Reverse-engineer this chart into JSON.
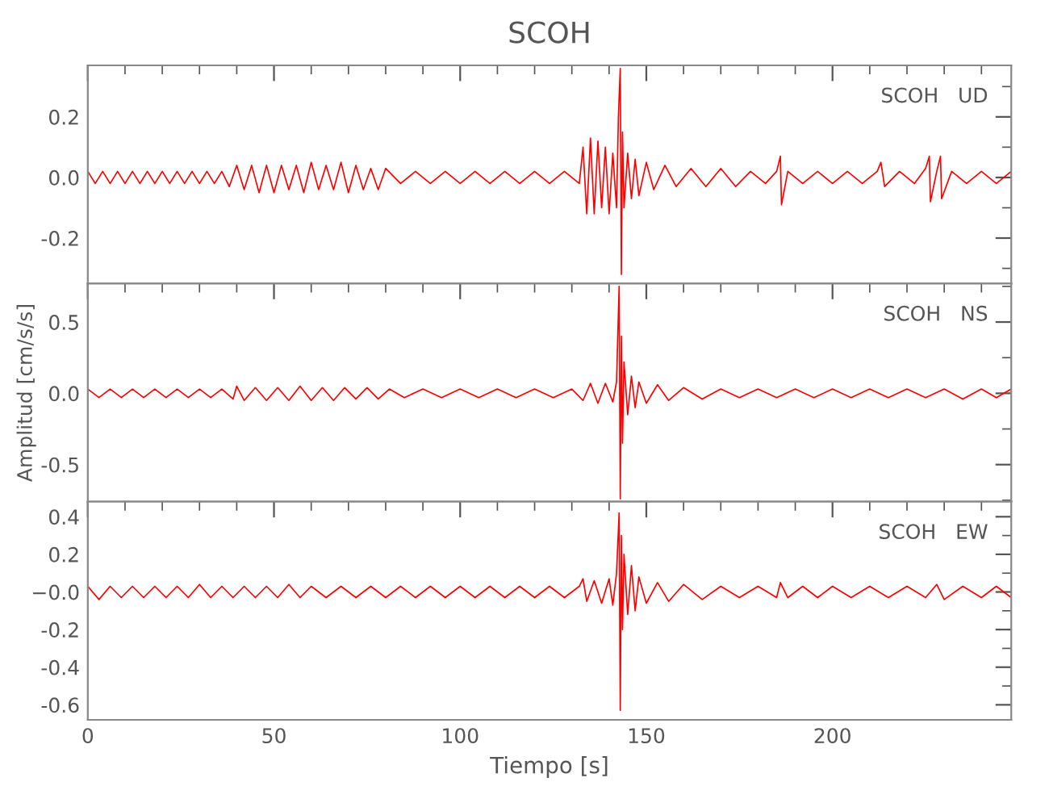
{
  "chart_data": [
    {
      "type": "line",
      "title": "SCOH",
      "annotations": [
        "SCOH   UD"
      ],
      "tick_labels": "y",
      "grid": false,
      "legend": false,
      "xlim": [
        0,
        248
      ],
      "xticks": [
        0,
        {
          "value": 10,
          "label": null
        },
        {
          "value": 20,
          "label": null
        },
        {
          "value": 30,
          "label": null
        },
        {
          "value": 40,
          "label": null
        },
        50,
        {
          "value": 60,
          "label": null
        },
        {
          "value": 70,
          "label": null
        },
        {
          "value": 80,
          "label": null
        },
        {
          "value": 90,
          "label": null
        },
        100,
        {
          "value": 110,
          "label": null
        },
        {
          "value": 120,
          "label": null
        },
        {
          "value": 130,
          "label": null
        },
        {
          "value": 140,
          "label": null
        },
        150,
        {
          "value": 160,
          "label": null
        },
        {
          "value": 170,
          "label": null
        },
        {
          "value": 180,
          "label": null
        },
        {
          "value": 190,
          "label": null
        },
        200,
        {
          "value": 210,
          "label": null
        },
        {
          "value": 220,
          "label": null
        },
        {
          "value": 230,
          "label": null
        },
        {
          "value": 240,
          "label": null
        }
      ],
      "ylim": [
        -0.35,
        0.37
      ],
      "yticks": [
        {
          "value": -0.3,
          "label": null
        },
        -0.2,
        {
          "value": -0.1,
          "label": null
        },
        {
          "value": 0,
          "label": "0.0"
        },
        {
          "value": 0.1,
          "label": null
        },
        0.2,
        {
          "value": 0.3,
          "label": null
        }
      ],
      "series": [
        {
          "color": "#ff0000",
          "x": [
            0,
            2,
            4,
            6,
            8,
            10,
            12,
            14,
            16,
            18,
            20,
            22,
            24,
            26,
            28,
            30,
            32,
            34,
            36,
            38,
            40,
            42,
            44,
            46,
            48,
            50,
            52,
            54,
            56,
            58,
            60,
            62,
            64,
            66,
            68,
            70,
            72,
            74,
            76,
            78,
            80,
            84,
            88,
            92,
            96,
            100,
            104,
            108,
            112,
            116,
            120,
            124,
            128,
            132,
            133,
            134,
            135,
            136,
            137,
            138,
            139,
            140,
            141,
            142,
            142.5,
            143,
            143.3,
            143.6,
            144,
            145,
            146,
            147,
            148,
            150,
            152,
            155,
            158,
            162,
            166,
            170,
            174,
            178,
            182,
            185,
            186,
            186.3,
            188,
            192,
            196,
            200,
            204,
            208,
            212,
            213,
            214,
            218,
            222,
            225,
            226,
            226.3,
            228,
            229,
            229.3,
            232,
            236,
            240,
            244,
            248
          ],
          "values": [
            0.02,
            -0.02,
            0.02,
            -0.02,
            0.02,
            -0.02,
            0.02,
            -0.02,
            0.02,
            -0.02,
            0.02,
            -0.02,
            0.02,
            -0.02,
            0.02,
            -0.02,
            0.02,
            -0.02,
            0.02,
            -0.03,
            0.04,
            -0.04,
            0.04,
            -0.05,
            0.04,
            -0.05,
            0.04,
            -0.04,
            0.04,
            -0.05,
            0.05,
            -0.04,
            0.04,
            -0.04,
            0.05,
            -0.05,
            0.04,
            -0.04,
            0.03,
            -0.04,
            0.03,
            -0.02,
            0.02,
            -0.02,
            0.02,
            -0.02,
            0.02,
            -0.02,
            0.02,
            -0.02,
            0.02,
            -0.02,
            0.02,
            -0.02,
            0.1,
            -0.12,
            0.13,
            -0.12,
            0.12,
            -0.1,
            0.1,
            -0.12,
            0.08,
            -0.1,
            0.2,
            0.36,
            -0.32,
            0.15,
            -0.1,
            0.08,
            -0.07,
            0.06,
            -0.06,
            0.05,
            -0.04,
            0.04,
            -0.03,
            0.03,
            -0.03,
            0.03,
            -0.03,
            0.02,
            -0.02,
            0.02,
            0.07,
            -0.09,
            0.02,
            -0.02,
            0.02,
            -0.02,
            0.02,
            -0.02,
            0.02,
            0.05,
            -0.03,
            0.02,
            -0.02,
            0.03,
            0.07,
            -0.08,
            0.02,
            0.07,
            -0.07,
            0.02,
            -0.02,
            0.02,
            -0.02,
            0.02
          ]
        }
      ]
    },
    {
      "type": "line",
      "ylabel": "Amplitud [cm/s/s]",
      "annotations": [
        "SCOH   NS"
      ],
      "tick_labels": "y",
      "grid": false,
      "legend": false,
      "xlim": [
        0,
        248
      ],
      "xticks": [
        0,
        {
          "value": 10,
          "label": null
        },
        {
          "value": 20,
          "label": null
        },
        {
          "value": 30,
          "label": null
        },
        {
          "value": 40,
          "label": null
        },
        50,
        {
          "value": 60,
          "label": null
        },
        {
          "value": 70,
          "label": null
        },
        {
          "value": 80,
          "label": null
        },
        {
          "value": 90,
          "label": null
        },
        100,
        {
          "value": 110,
          "label": null
        },
        {
          "value": 120,
          "label": null
        },
        {
          "value": 130,
          "label": null
        },
        {
          "value": 140,
          "label": null
        },
        150,
        {
          "value": 160,
          "label": null
        },
        {
          "value": 170,
          "label": null
        },
        {
          "value": 180,
          "label": null
        },
        {
          "value": 190,
          "label": null
        },
        200,
        {
          "value": 210,
          "label": null
        },
        {
          "value": 220,
          "label": null
        },
        {
          "value": 230,
          "label": null
        },
        {
          "value": 240,
          "label": null
        }
      ],
      "ylim": [
        -0.76,
        0.77
      ],
      "yticks": [
        {
          "value": -0.75,
          "label": null
        },
        -0.5,
        {
          "value": -0.25,
          "label": null
        },
        {
          "value": 0,
          "label": "0.0"
        },
        {
          "value": 0.25,
          "label": null
        },
        0.5,
        {
          "value": 0.75,
          "label": null
        }
      ],
      "series": [
        {
          "color": "#ff0000",
          "x": [
            0,
            3,
            6,
            9,
            12,
            15,
            18,
            21,
            24,
            27,
            30,
            33,
            36,
            39,
            40,
            42,
            45,
            48,
            51,
            54,
            57,
            60,
            63,
            66,
            69,
            72,
            75,
            78,
            81,
            85,
            90,
            95,
            100,
            105,
            110,
            115,
            120,
            125,
            130,
            133,
            135,
            137,
            139,
            141,
            142,
            142.7,
            143,
            143.3,
            143.6,
            144,
            145,
            146,
            147,
            148,
            150,
            153,
            156,
            160,
            165,
            170,
            175,
            180,
            185,
            190,
            195,
            200,
            205,
            210,
            215,
            220,
            225,
            230,
            235,
            240,
            244,
            248
          ],
          "values": [
            0.03,
            -0.03,
            0.03,
            -0.03,
            0.03,
            -0.03,
            0.03,
            -0.03,
            0.03,
            -0.03,
            0.03,
            -0.03,
            0.03,
            -0.04,
            0.05,
            -0.05,
            0.04,
            -0.05,
            0.04,
            -0.05,
            0.05,
            -0.05,
            0.04,
            -0.05,
            0.04,
            -0.04,
            0.04,
            -0.04,
            0.03,
            -0.03,
            0.03,
            -0.03,
            0.03,
            -0.03,
            0.03,
            -0.03,
            0.03,
            -0.03,
            0.03,
            -0.05,
            0.07,
            -0.07,
            0.07,
            -0.06,
            0.08,
            0.75,
            -0.74,
            0.4,
            -0.35,
            0.22,
            -0.15,
            0.12,
            -0.1,
            0.08,
            -0.07,
            0.06,
            -0.05,
            0.04,
            -0.04,
            0.03,
            -0.03,
            0.03,
            -0.03,
            0.03,
            -0.03,
            0.03,
            -0.03,
            0.03,
            -0.03,
            0.03,
            -0.03,
            0.03,
            -0.04,
            0.03,
            -0.03,
            0.03
          ]
        }
      ]
    },
    {
      "type": "line",
      "xlabel": "Tiempo [s]",
      "annotations": [
        "SCOH   EW"
      ],
      "grid": false,
      "legend": false,
      "xlim": [
        0,
        248
      ],
      "xticks": [
        0,
        {
          "value": 10,
          "label": null
        },
        {
          "value": 20,
          "label": null
        },
        {
          "value": 30,
          "label": null
        },
        {
          "value": 40,
          "label": null
        },
        50,
        {
          "value": 60,
          "label": null
        },
        {
          "value": 70,
          "label": null
        },
        {
          "value": 80,
          "label": null
        },
        {
          "value": 90,
          "label": null
        },
        100,
        {
          "value": 110,
          "label": null
        },
        {
          "value": 120,
          "label": null
        },
        {
          "value": 130,
          "label": null
        },
        {
          "value": 140,
          "label": null
        },
        150,
        {
          "value": 160,
          "label": null
        },
        {
          "value": 170,
          "label": null
        },
        {
          "value": 180,
          "label": null
        },
        {
          "value": 190,
          "label": null
        },
        200,
        {
          "value": 210,
          "label": null
        },
        {
          "value": 220,
          "label": null
        },
        {
          "value": 230,
          "label": null
        },
        {
          "value": 240,
          "label": null
        }
      ],
      "ylim": [
        -0.68,
        0.48
      ],
      "yticks": [
        -0.6,
        {
          "value": -0.5,
          "label": null
        },
        -0.4,
        {
          "value": -0.3,
          "label": null
        },
        -0.2,
        {
          "value": -0.1,
          "label": null
        },
        {
          "value": 0.0,
          "label": "−0.0"
        },
        {
          "value": 0.1,
          "label": null
        },
        0.2,
        {
          "value": 0.3,
          "label": null
        },
        0.4
      ],
      "series": [
        {
          "color": "#ff0000",
          "x": [
            0,
            3,
            6,
            9,
            12,
            15,
            18,
            21,
            24,
            27,
            30,
            33,
            36,
            39,
            42,
            45,
            48,
            51,
            54,
            57,
            60,
            64,
            68,
            72,
            76,
            80,
            84,
            88,
            92,
            96,
            100,
            104,
            108,
            112,
            116,
            120,
            124,
            128,
            132,
            133,
            134,
            136,
            138,
            140,
            141,
            142,
            142.7,
            143,
            143.3,
            143.6,
            144,
            145,
            146,
            147,
            148,
            150,
            153,
            156,
            160,
            165,
            170,
            175,
            180,
            185,
            186,
            188,
            192,
            196,
            200,
            205,
            210,
            215,
            220,
            225,
            228,
            230,
            235,
            240,
            244,
            248
          ],
          "values": [
            0.03,
            -0.04,
            0.03,
            -0.03,
            0.03,
            -0.03,
            0.03,
            -0.03,
            0.03,
            -0.03,
            0.04,
            -0.03,
            0.03,
            -0.03,
            0.03,
            -0.03,
            0.03,
            -0.03,
            0.04,
            -0.03,
            0.03,
            -0.03,
            0.03,
            -0.03,
            0.03,
            -0.03,
            0.03,
            -0.03,
            0.03,
            -0.03,
            0.03,
            -0.03,
            0.03,
            -0.03,
            0.03,
            -0.03,
            0.03,
            -0.03,
            0.03,
            0.07,
            -0.05,
            0.06,
            -0.06,
            0.07,
            -0.07,
            0.1,
            0.42,
            -0.63,
            0.3,
            -0.2,
            0.2,
            -0.12,
            0.14,
            -0.1,
            0.08,
            -0.06,
            0.05,
            -0.05,
            0.04,
            -0.04,
            0.03,
            -0.03,
            0.03,
            -0.03,
            0.05,
            -0.03,
            0.03,
            -0.03,
            0.03,
            -0.03,
            0.03,
            -0.03,
            0.03,
            -0.03,
            0.04,
            -0.04,
            0.03,
            -0.03,
            0.03,
            -0.03
          ]
        }
      ]
    }
  ]
}
